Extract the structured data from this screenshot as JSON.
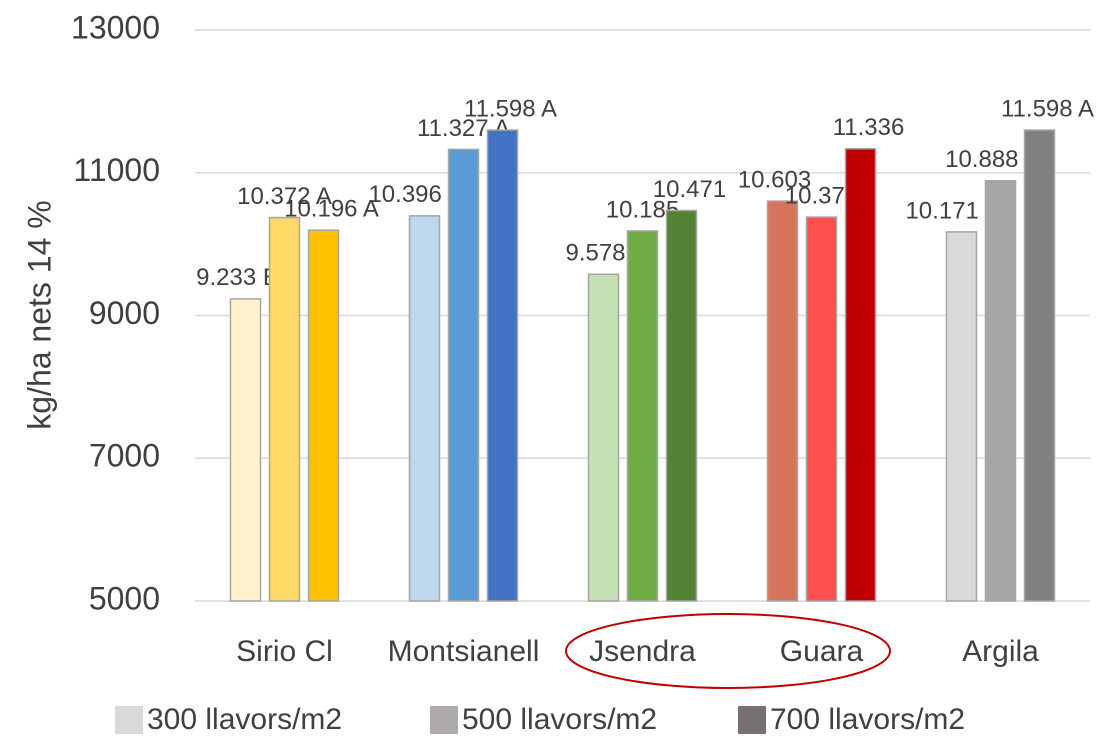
{
  "chart_data": {
    "type": "bar",
    "y_label": "kg/ha nets 14 %",
    "categories": [
      "Sirio Cl",
      "Montsianell",
      "Jsendra",
      "Guara",
      "Argila"
    ],
    "series": [
      {
        "name": "300 llavors/m2",
        "color": "#d9d9d9",
        "colors": [
          "#fff2cc",
          "#bdd7ee",
          "#c5e0b4",
          "#d6755b",
          "#d9d9d9"
        ],
        "values": [
          9233,
          10396,
          9578,
          10603,
          10171
        ],
        "value_labels": [
          "9.233 B",
          "10.396 B",
          "9.578",
          "10.603",
          "10.171 B"
        ]
      },
      {
        "name": "500 llavors/m2",
        "color": "#aeaaaa",
        "colors": [
          "#ffd966",
          "#5b9bd5",
          "#70ad47",
          "#ff5050",
          "#a6a6a6"
        ],
        "values": [
          10372,
          11327,
          10185,
          10379,
          10888
        ],
        "value_labels": [
          "10.372 A",
          "11.327 A",
          "10.185",
          "10.379",
          "10.888 AB"
        ]
      },
      {
        "name": "700 llavors/m2",
        "color": "#767171",
        "colors": [
          "#ffc000",
          "#4472c4",
          "#548235",
          "#c00000",
          "#808080"
        ],
        "values": [
          10196,
          11598,
          10471,
          11336,
          11598
        ],
        "value_labels": [
          "10.196 A",
          "11.598 A",
          "10.471",
          "11.336",
          "11.598 A"
        ]
      }
    ],
    "ylim": [
      5000,
      13000
    ],
    "yticks": [
      5000,
      7000,
      9000,
      11000,
      13000
    ],
    "grid": true
  }
}
